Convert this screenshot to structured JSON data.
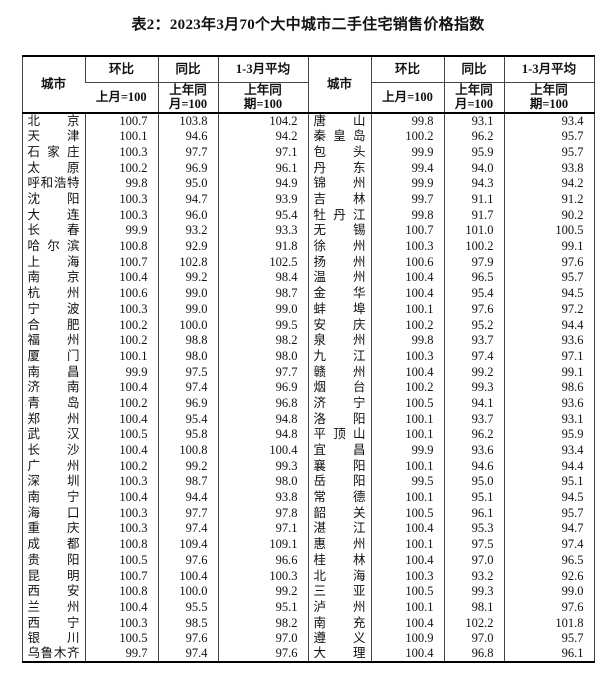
{
  "title": "表2：2023年3月70个大中城市二手住宅销售价格指数",
  "table": {
    "columns": {
      "city": "城市",
      "mom": "环比",
      "yoy": "同比",
      "avg": "1-3月平均",
      "mom_base": "上月=100",
      "yoy_base": "上年同\n月=100",
      "avg_base": "上年同\n期=100"
    },
    "left_rows": [
      {
        "city": "北京",
        "mom": "100.7",
        "yoy": "103.8",
        "avg": "104.2"
      },
      {
        "city": "天津",
        "mom": "100.1",
        "yoy": "94.6",
        "avg": "94.2"
      },
      {
        "city": "石家庄",
        "mom": "100.3",
        "yoy": "97.7",
        "avg": "97.1"
      },
      {
        "city": "太原",
        "mom": "100.2",
        "yoy": "96.9",
        "avg": "96.1"
      },
      {
        "city": "呼和浩特",
        "mom": "99.8",
        "yoy": "95.0",
        "avg": "94.9"
      },
      {
        "city": "沈阳",
        "mom": "100.3",
        "yoy": "94.7",
        "avg": "93.9"
      },
      {
        "city": "大连",
        "mom": "100.3",
        "yoy": "96.0",
        "avg": "95.4"
      },
      {
        "city": "长春",
        "mom": "99.9",
        "yoy": "93.2",
        "avg": "93.3"
      },
      {
        "city": "哈尔滨",
        "mom": "100.8",
        "yoy": "92.9",
        "avg": "91.8"
      },
      {
        "city": "上海",
        "mom": "100.7",
        "yoy": "102.8",
        "avg": "102.5"
      },
      {
        "city": "南京",
        "mom": "100.4",
        "yoy": "99.2",
        "avg": "98.4"
      },
      {
        "city": "杭州",
        "mom": "100.6",
        "yoy": "99.0",
        "avg": "98.7"
      },
      {
        "city": "宁波",
        "mom": "100.3",
        "yoy": "99.0",
        "avg": "99.0"
      },
      {
        "city": "合肥",
        "mom": "100.2",
        "yoy": "100.0",
        "avg": "99.5"
      },
      {
        "city": "福州",
        "mom": "100.2",
        "yoy": "98.8",
        "avg": "98.2"
      },
      {
        "city": "厦门",
        "mom": "100.1",
        "yoy": "98.0",
        "avg": "98.0"
      },
      {
        "city": "南昌",
        "mom": "99.9",
        "yoy": "97.5",
        "avg": "97.7"
      },
      {
        "city": "济南",
        "mom": "100.4",
        "yoy": "97.4",
        "avg": "96.9"
      },
      {
        "city": "青岛",
        "mom": "100.2",
        "yoy": "96.9",
        "avg": "96.8"
      },
      {
        "city": "郑州",
        "mom": "100.4",
        "yoy": "95.4",
        "avg": "94.8"
      },
      {
        "city": "武汉",
        "mom": "100.5",
        "yoy": "95.8",
        "avg": "94.8"
      },
      {
        "city": "长沙",
        "mom": "100.4",
        "yoy": "100.8",
        "avg": "100.4"
      },
      {
        "city": "广州",
        "mom": "100.2",
        "yoy": "99.2",
        "avg": "99.3"
      },
      {
        "city": "深圳",
        "mom": "100.3",
        "yoy": "98.7",
        "avg": "98.0"
      },
      {
        "city": "南宁",
        "mom": "100.4",
        "yoy": "94.4",
        "avg": "93.8"
      },
      {
        "city": "海口",
        "mom": "100.3",
        "yoy": "97.7",
        "avg": "97.8"
      },
      {
        "city": "重庆",
        "mom": "100.3",
        "yoy": "97.4",
        "avg": "97.1"
      },
      {
        "city": "成都",
        "mom": "100.8",
        "yoy": "109.4",
        "avg": "109.1"
      },
      {
        "city": "贵阳",
        "mom": "100.5",
        "yoy": "97.6",
        "avg": "96.6"
      },
      {
        "city": "昆明",
        "mom": "100.7",
        "yoy": "100.4",
        "avg": "100.3"
      },
      {
        "city": "西安",
        "mom": "100.8",
        "yoy": "100.0",
        "avg": "99.2"
      },
      {
        "city": "兰州",
        "mom": "100.4",
        "yoy": "95.5",
        "avg": "95.1"
      },
      {
        "city": "西宁",
        "mom": "100.3",
        "yoy": "98.5",
        "avg": "98.2"
      },
      {
        "city": "银川",
        "mom": "100.5",
        "yoy": "97.6",
        "avg": "97.0"
      },
      {
        "city": "乌鲁木齐",
        "mom": "99.7",
        "yoy": "97.4",
        "avg": "97.6"
      }
    ],
    "right_rows": [
      {
        "city": "唐山",
        "mom": "99.8",
        "yoy": "93.1",
        "avg": "93.4"
      },
      {
        "city": "秦皇岛",
        "mom": "100.2",
        "yoy": "96.2",
        "avg": "95.7"
      },
      {
        "city": "包头",
        "mom": "99.9",
        "yoy": "95.9",
        "avg": "95.7"
      },
      {
        "city": "丹东",
        "mom": "99.4",
        "yoy": "94.0",
        "avg": "93.8"
      },
      {
        "city": "锦州",
        "mom": "99.9",
        "yoy": "94.3",
        "avg": "94.2"
      },
      {
        "city": "吉林",
        "mom": "99.7",
        "yoy": "91.1",
        "avg": "91.2"
      },
      {
        "city": "牡丹江",
        "mom": "99.8",
        "yoy": "91.7",
        "avg": "90.2"
      },
      {
        "city": "无锡",
        "mom": "100.7",
        "yoy": "101.0",
        "avg": "100.5"
      },
      {
        "city": "徐州",
        "mom": "100.3",
        "yoy": "100.2",
        "avg": "99.1"
      },
      {
        "city": "扬州",
        "mom": "100.6",
        "yoy": "97.9",
        "avg": "97.6"
      },
      {
        "city": "温州",
        "mom": "100.4",
        "yoy": "96.5",
        "avg": "95.7"
      },
      {
        "city": "金华",
        "mom": "100.4",
        "yoy": "95.4",
        "avg": "94.5"
      },
      {
        "city": "蚌埠",
        "mom": "100.1",
        "yoy": "97.6",
        "avg": "97.2"
      },
      {
        "city": "安庆",
        "mom": "100.2",
        "yoy": "95.2",
        "avg": "94.4"
      },
      {
        "city": "泉州",
        "mom": "99.8",
        "yoy": "93.7",
        "avg": "93.6"
      },
      {
        "city": "九江",
        "mom": "100.3",
        "yoy": "97.4",
        "avg": "97.1"
      },
      {
        "city": "赣州",
        "mom": "100.4",
        "yoy": "99.2",
        "avg": "99.1"
      },
      {
        "city": "烟台",
        "mom": "100.2",
        "yoy": "99.3",
        "avg": "98.6"
      },
      {
        "city": "济宁",
        "mom": "100.5",
        "yoy": "94.1",
        "avg": "93.6"
      },
      {
        "city": "洛阳",
        "mom": "100.1",
        "yoy": "93.7",
        "avg": "93.1"
      },
      {
        "city": "平顶山",
        "mom": "100.1",
        "yoy": "96.2",
        "avg": "95.9"
      },
      {
        "city": "宜昌",
        "mom": "99.9",
        "yoy": "93.6",
        "avg": "93.4"
      },
      {
        "city": "襄阳",
        "mom": "100.1",
        "yoy": "94.6",
        "avg": "94.4"
      },
      {
        "city": "岳阳",
        "mom": "99.5",
        "yoy": "95.0",
        "avg": "95.1"
      },
      {
        "city": "常德",
        "mom": "100.1",
        "yoy": "95.1",
        "avg": "94.5"
      },
      {
        "city": "韶关",
        "mom": "100.5",
        "yoy": "96.1",
        "avg": "95.7"
      },
      {
        "city": "湛江",
        "mom": "100.4",
        "yoy": "95.3",
        "avg": "94.7"
      },
      {
        "city": "惠州",
        "mom": "100.1",
        "yoy": "97.5",
        "avg": "97.4"
      },
      {
        "city": "桂林",
        "mom": "100.4",
        "yoy": "97.0",
        "avg": "96.5"
      },
      {
        "city": "北海",
        "mom": "100.3",
        "yoy": "93.2",
        "avg": "92.6"
      },
      {
        "city": "三亚",
        "mom": "100.5",
        "yoy": "99.3",
        "avg": "99.0"
      },
      {
        "city": "泸州",
        "mom": "100.1",
        "yoy": "98.1",
        "avg": "97.6"
      },
      {
        "city": "南充",
        "mom": "100.4",
        "yoy": "102.2",
        "avg": "101.8"
      },
      {
        "city": "遵义",
        "mom": "100.9",
        "yoy": "97.0",
        "avg": "95.7"
      },
      {
        "city": "大理",
        "mom": "100.4",
        "yoy": "96.8",
        "avg": "96.1"
      }
    ]
  }
}
